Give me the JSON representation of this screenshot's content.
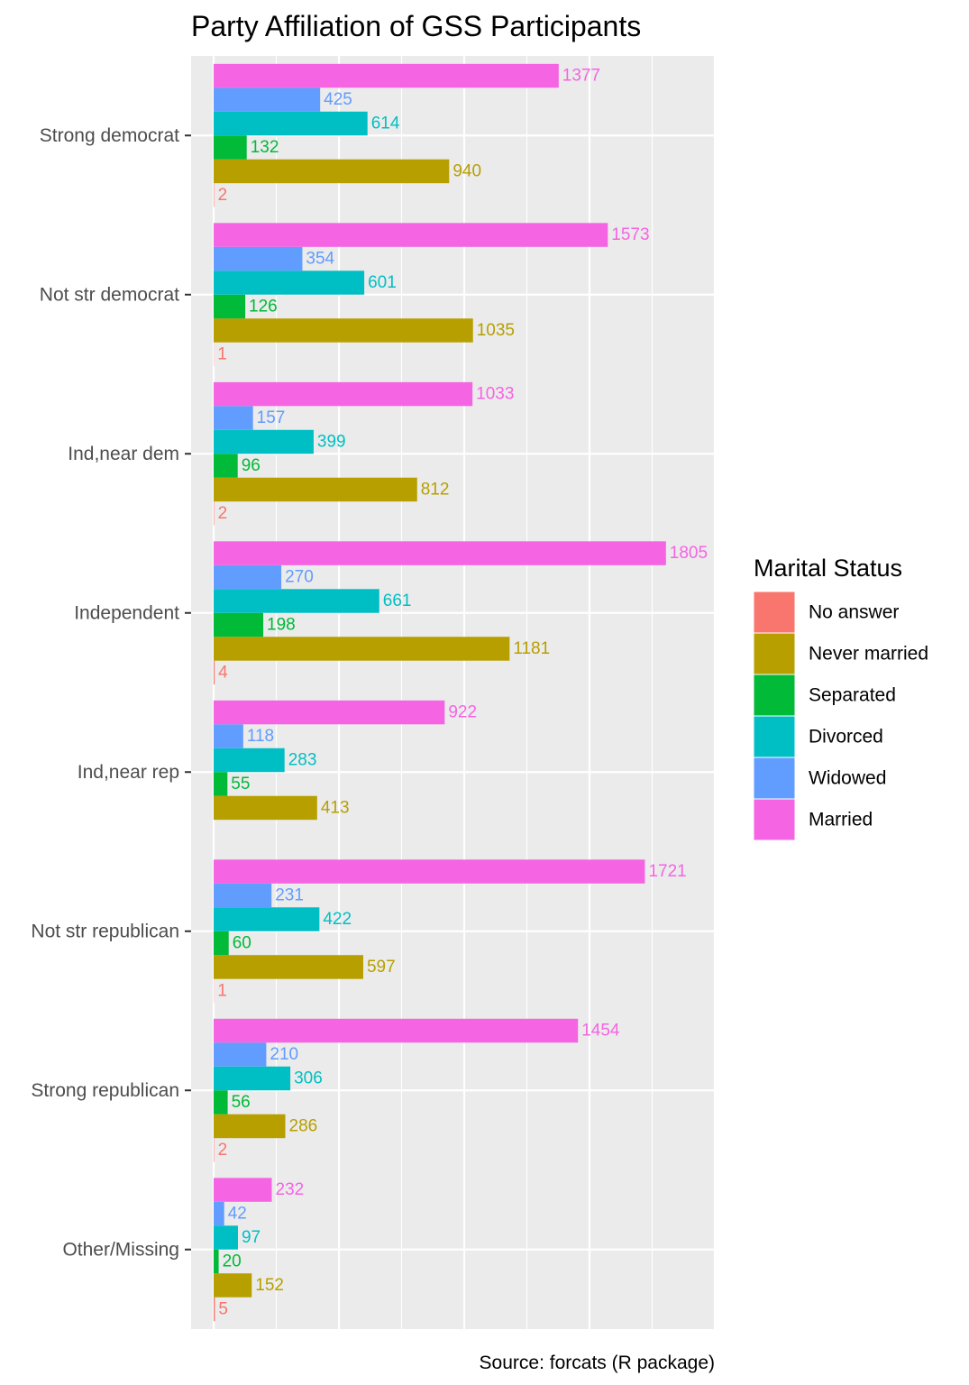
{
  "chart_data": {
    "type": "bar",
    "orientation": "horizontal",
    "title": "Party Affiliation of GSS Participants",
    "caption": "Source: forcats (R package)",
    "legend_title": "Marital Status",
    "legend_position": "right",
    "grid": true,
    "xlim": [
      -90,
      2000
    ],
    "xlabel": "",
    "ylabel": "",
    "categories": [
      "Strong democrat",
      "Not str democrat",
      "Ind,near dem",
      "Independent",
      "Ind,near rep",
      "Not str republican",
      "Strong republican",
      "Other/Missing"
    ],
    "series": [
      {
        "name": "No answer",
        "color": "#F8766D",
        "values": [
          2,
          1,
          2,
          4,
          0,
          1,
          2,
          5
        ]
      },
      {
        "name": "Never married",
        "color": "#B79F00",
        "values": [
          940,
          1035,
          812,
          1181,
          413,
          597,
          286,
          152
        ]
      },
      {
        "name": "Separated",
        "color": "#00BA38",
        "values": [
          132,
          126,
          96,
          198,
          55,
          60,
          56,
          20
        ]
      },
      {
        "name": "Divorced",
        "color": "#00BFC4",
        "values": [
          614,
          601,
          399,
          661,
          283,
          422,
          306,
          97
        ]
      },
      {
        "name": "Widowed",
        "color": "#619CFF",
        "values": [
          425,
          354,
          157,
          270,
          118,
          231,
          210,
          42
        ]
      },
      {
        "name": "Married",
        "color": "#F564E3",
        "values": [
          1377,
          1573,
          1033,
          1805,
          922,
          1721,
          1454,
          232
        ]
      }
    ]
  }
}
